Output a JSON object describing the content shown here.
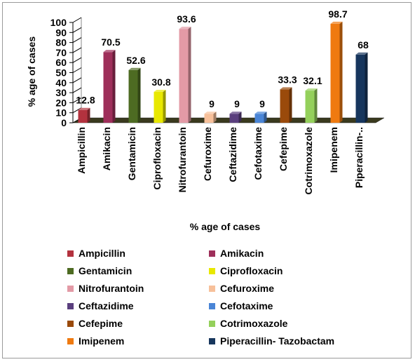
{
  "chart_data": {
    "type": "bar",
    "categories": [
      "Ampicillin",
      "Amikacin",
      "Gentamicin",
      "Ciprofloxacin",
      "Nitrofurantoin",
      "Cefuroxime",
      "Ceftazidime",
      "Cefotaxime",
      "Cefepime",
      "Cotrimoxazole",
      "Imipenem",
      "Piperacillin-.."
    ],
    "values": [
      12.8,
      70.5,
      52.6,
      30.8,
      93.6,
      9,
      9,
      9,
      33.3,
      32.1,
      98.7,
      68
    ],
    "data_labels": [
      "12.8",
      "70.5",
      "52.6",
      "30.8",
      "93.6",
      "9",
      "9",
      "9",
      "33.3",
      "32.1",
      "98.7",
      "68"
    ],
    "colors": [
      "#b3323e",
      "#9e2f5a",
      "#4d6b22",
      "#e8e800",
      "#e39aa6",
      "#f7c09a",
      "#5a3f7e",
      "#4a85d6",
      "#9a4a0b",
      "#94d05b",
      "#ef7a10",
      "#17365d"
    ],
    "ylabel": "% age of cases",
    "xlabel": "% age of cases",
    "ylim": [
      0,
      100
    ],
    "yticks": [
      0,
      10,
      20,
      30,
      40,
      50,
      60,
      70,
      80,
      90,
      100
    ],
    "legend_labels": [
      "Ampicillin",
      "Amikacin",
      "Gentamicin",
      "Ciprofloxacin",
      "Nitrofurantoin",
      "Cefuroxime",
      "Ceftazidime",
      "Cefotaxime",
      "Cefepime",
      "Cotrimoxazole",
      "Imipenem",
      "Piperacillin- Tazobactam"
    ],
    "legend_placement": "bottom",
    "grid": false,
    "style": "3d"
  }
}
